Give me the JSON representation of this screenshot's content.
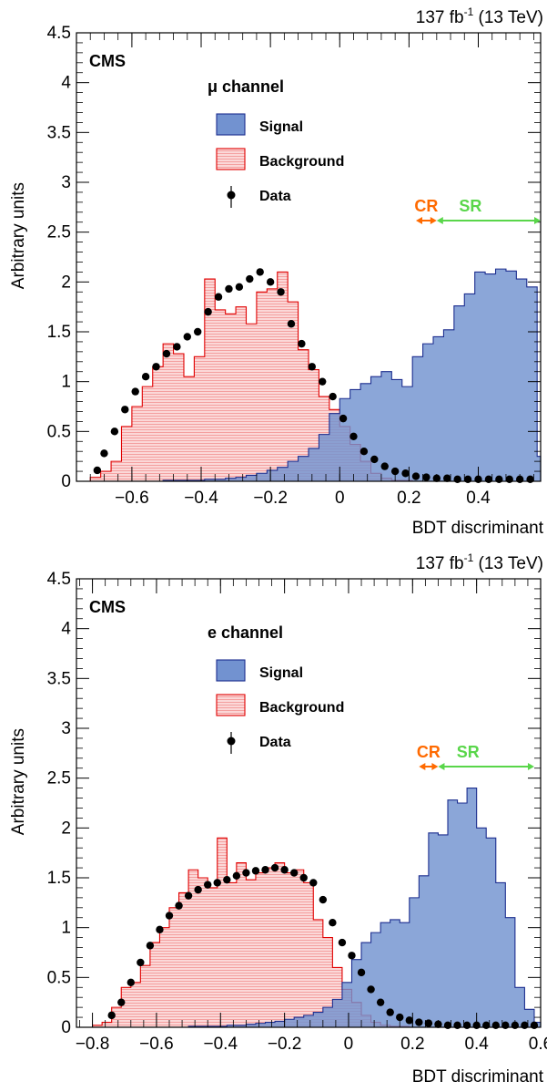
{
  "chart_data": [
    {
      "type": "histogram",
      "lumi_label": "137 fb",
      "lumi_sup": "-1",
      "lumi_energy": " (13 TeV)",
      "experiment": "CMS",
      "channel": "μ channel",
      "xlabel": "BDT discriminant",
      "ylabel": "Arbitrary units",
      "xlim": [
        -0.76,
        0.58
      ],
      "ylim": [
        0,
        4.5
      ],
      "xticks": [
        -0.6,
        -0.4,
        -0.2,
        0,
        0.2,
        0.4
      ],
      "xtick_labels": [
        "−0.6",
        "−0.4",
        "−0.2",
        "0",
        "0.2",
        "0.4"
      ],
      "yticks": [
        0,
        0.5,
        1,
        1.5,
        2,
        2.5,
        3,
        3.5,
        4,
        4.5
      ],
      "ytick_labels": [
        "0",
        "0.5",
        "1",
        "1.5",
        "2",
        "2.5",
        "3",
        "3.5",
        "4",
        "4.5"
      ],
      "legend": {
        "signal": "Signal",
        "background": "Background",
        "data": "Data"
      },
      "regions": {
        "cr_label": "CR",
        "sr_label": "SR",
        "cr_range": [
          0.22,
          0.28
        ],
        "sr_range": [
          0.28,
          0.58
        ]
      },
      "bin_edges": [
        -0.72,
        -0.69,
        -0.66,
        -0.63,
        -0.6,
        -0.57,
        -0.54,
        -0.51,
        -0.48,
        -0.45,
        -0.42,
        -0.39,
        -0.36,
        -0.33,
        -0.3,
        -0.27,
        -0.24,
        -0.21,
        -0.18,
        -0.15,
        -0.12,
        -0.09,
        -0.06,
        -0.03,
        0.0,
        0.03,
        0.06,
        0.09,
        0.12,
        0.15,
        0.18,
        0.21,
        0.24,
        0.27,
        0.3,
        0.33,
        0.36,
        0.39,
        0.42,
        0.45,
        0.48,
        0.51,
        0.54,
        0.57,
        0.58
      ],
      "background": [
        0.04,
        0.1,
        0.2,
        0.55,
        0.75,
        0.95,
        1.15,
        1.38,
        1.28,
        1.05,
        1.25,
        2.03,
        1.72,
        1.68,
        1.75,
        1.58,
        1.9,
        1.93,
        2.1,
        1.8,
        1.32,
        1.12,
        0.85,
        0.72,
        0.55,
        0.37,
        0.2,
        0.08,
        0.03,
        0.01,
        0.01,
        0.0,
        0.0,
        0.0,
        0.0,
        0.0,
        0.0,
        0.0,
        0.0,
        0.0,
        0.0,
        0.0,
        0.0,
        0.0
      ],
      "signal": [
        0.0,
        0.0,
        0.0,
        0.0,
        0.0,
        0.0,
        0.0,
        0.01,
        0.01,
        0.01,
        0.01,
        0.02,
        0.02,
        0.03,
        0.04,
        0.06,
        0.08,
        0.11,
        0.14,
        0.2,
        0.25,
        0.33,
        0.47,
        0.68,
        0.83,
        0.92,
        0.98,
        1.05,
        1.1,
        1.02,
        0.95,
        1.25,
        1.38,
        1.45,
        1.52,
        1.76,
        1.88,
        2.1,
        2.08,
        2.13,
        2.11,
        2.03,
        1.95,
        0.25
      ],
      "data": {
        "x": [
          -0.7,
          -0.68,
          -0.65,
          -0.62,
          -0.59,
          -0.56,
          -0.53,
          -0.5,
          -0.47,
          -0.44,
          -0.41,
          -0.38,
          -0.35,
          -0.32,
          -0.29,
          -0.26,
          -0.23,
          -0.2,
          -0.17,
          -0.14,
          -0.11,
          -0.08,
          -0.05,
          -0.02,
          0.01,
          0.04,
          0.07,
          0.1,
          0.13,
          0.16,
          0.19,
          0.22,
          0.25,
          0.28,
          0.31,
          0.34,
          0.37,
          0.4,
          0.43,
          0.46,
          0.49,
          0.52,
          0.55
        ],
        "y": [
          0.11,
          0.28,
          0.5,
          0.72,
          0.9,
          1.05,
          1.15,
          1.28,
          1.35,
          1.45,
          1.5,
          1.7,
          1.85,
          1.93,
          1.95,
          2.03,
          2.1,
          2.0,
          1.9,
          1.58,
          1.38,
          1.15,
          1.0,
          0.85,
          0.63,
          0.45,
          0.3,
          0.22,
          0.15,
          0.1,
          0.08,
          0.05,
          0.04,
          0.03,
          0.03,
          0.02,
          0.02,
          0.02,
          0.02,
          0.02,
          0.02,
          0.02,
          0.02
        ]
      }
    },
    {
      "type": "histogram",
      "lumi_label": "137 fb",
      "lumi_sup": "-1",
      "lumi_energy": " (13 TeV)",
      "experiment": "CMS",
      "channel": "e channel",
      "xlabel": "BDT discriminant",
      "ylabel": "Arbitrary units",
      "xlim": [
        -0.85,
        0.6
      ],
      "ylim": [
        0,
        4.5
      ],
      "xticks": [
        -0.8,
        -0.6,
        -0.4,
        -0.2,
        0,
        0.2,
        0.4,
        0.6
      ],
      "xtick_labels": [
        "−0.8",
        "−0.6",
        "−0.4",
        "−0.2",
        "0",
        "0.2",
        "0.4",
        "0.6"
      ],
      "yticks": [
        0,
        0.5,
        1,
        1.5,
        2,
        2.5,
        3,
        3.5,
        4,
        4.5
      ],
      "ytick_labels": [
        "0",
        "0.5",
        "1",
        "1.5",
        "2",
        "2.5",
        "3",
        "3.5",
        "4",
        "4.5"
      ],
      "legend": {
        "signal": "Signal",
        "background": "Background",
        "data": "Data"
      },
      "regions": {
        "cr_label": "CR",
        "sr_label": "SR",
        "cr_range": [
          0.22,
          0.28
        ],
        "sr_range": [
          0.28,
          0.58
        ]
      },
      "bin_edges": [
        -0.8,
        -0.77,
        -0.74,
        -0.71,
        -0.68,
        -0.65,
        -0.62,
        -0.59,
        -0.56,
        -0.53,
        -0.5,
        -0.47,
        -0.44,
        -0.41,
        -0.38,
        -0.35,
        -0.32,
        -0.29,
        -0.26,
        -0.23,
        -0.2,
        -0.17,
        -0.14,
        -0.11,
        -0.08,
        -0.05,
        -0.02,
        0.01,
        0.04,
        0.07,
        0.1,
        0.13,
        0.16,
        0.19,
        0.22,
        0.25,
        0.28,
        0.31,
        0.34,
        0.37,
        0.4,
        0.43,
        0.46,
        0.49,
        0.52,
        0.55,
        0.58,
        0.6
      ],
      "background": [
        0.02,
        0.05,
        0.2,
        0.4,
        0.45,
        0.62,
        0.85,
        1.0,
        1.2,
        1.35,
        1.58,
        1.5,
        1.4,
        1.9,
        1.45,
        1.65,
        1.48,
        1.55,
        1.6,
        1.65,
        1.55,
        1.58,
        1.45,
        1.08,
        0.9,
        0.6,
        0.38,
        0.25,
        0.12,
        0.05,
        0.02,
        0.01,
        0.01,
        0.0,
        0.0,
        0.0,
        0.0,
        0.0,
        0.0,
        0.0,
        0.0,
        0.0,
        0.0,
        0.0,
        0.0,
        0.0,
        0.0
      ],
      "signal": [
        0.0,
        0.0,
        0.0,
        0.0,
        0.0,
        0.0,
        0.0,
        0.0,
        0.0,
        0.0,
        0.01,
        0.01,
        0.01,
        0.01,
        0.02,
        0.02,
        0.03,
        0.04,
        0.05,
        0.06,
        0.08,
        0.1,
        0.12,
        0.15,
        0.2,
        0.28,
        0.45,
        0.68,
        0.85,
        0.95,
        1.05,
        1.08,
        1.05,
        1.3,
        1.52,
        1.95,
        1.93,
        2.28,
        2.25,
        2.4,
        2.0,
        1.9,
        1.45,
        1.1,
        0.4,
        0.18,
        0.05
      ],
      "data": {
        "x": [
          -0.74,
          -0.71,
          -0.68,
          -0.65,
          -0.62,
          -0.59,
          -0.56,
          -0.53,
          -0.5,
          -0.47,
          -0.44,
          -0.41,
          -0.38,
          -0.35,
          -0.32,
          -0.29,
          -0.26,
          -0.23,
          -0.2,
          -0.17,
          -0.14,
          -0.11,
          -0.08,
          -0.05,
          -0.02,
          0.01,
          0.04,
          0.07,
          0.1,
          0.13,
          0.16,
          0.19,
          0.22,
          0.25,
          0.28,
          0.31,
          0.34,
          0.37,
          0.4,
          0.43,
          0.46,
          0.49,
          0.52,
          0.55,
          0.58
        ],
        "y": [
          0.12,
          0.25,
          0.45,
          0.65,
          0.82,
          0.98,
          1.12,
          1.22,
          1.32,
          1.38,
          1.43,
          1.45,
          1.48,
          1.52,
          1.55,
          1.57,
          1.58,
          1.6,
          1.58,
          1.55,
          1.5,
          1.45,
          1.28,
          1.05,
          0.85,
          0.72,
          0.55,
          0.38,
          0.25,
          0.15,
          0.1,
          0.07,
          0.05,
          0.04,
          0.03,
          0.02,
          0.02,
          0.02,
          0.02,
          0.02,
          0.02,
          0.02,
          0.02,
          0.02,
          0.02
        ]
      }
    }
  ],
  "colors": {
    "signal_fill": "#7292d0",
    "signal_line": "#1c2e8f",
    "background_fill": "#fbd8d8",
    "background_line": "#e00000",
    "data_marker": "#000000",
    "cr_arrow": "#ff6a00",
    "sr_arrow": "#59d64a"
  }
}
